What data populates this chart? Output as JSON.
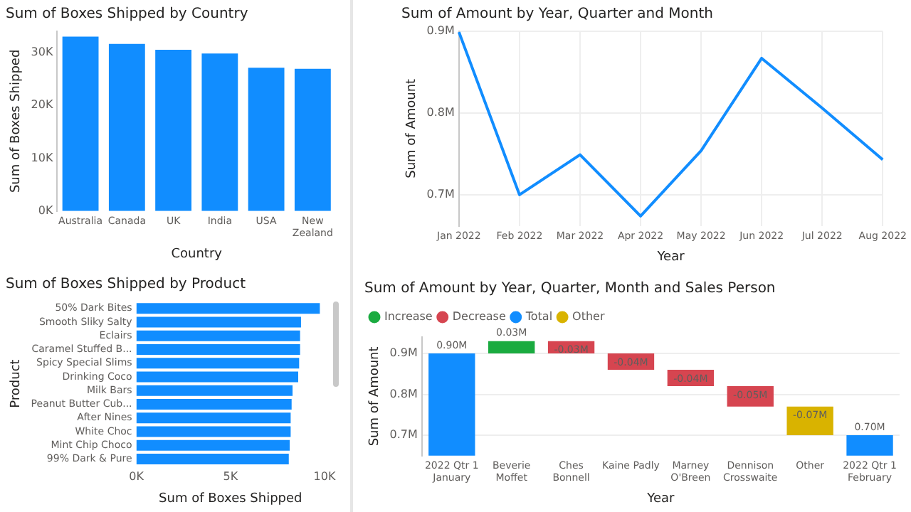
{
  "chart_data": [
    {
      "type": "bar",
      "title": "Sum of Boxes Shipped by Country",
      "xlabel": "Country",
      "ylabel": "Sum of Boxes Shipped",
      "categories": [
        "Australia",
        "Canada",
        "UK",
        "India",
        "USA",
        "New Zealand"
      ],
      "values": [
        33000,
        31600,
        30500,
        29800,
        27100,
        26900
      ],
      "color": "#118dff",
      "ylim": [
        0,
        34000
      ],
      "yticks": [
        {
          "value": 0,
          "label": "0K"
        },
        {
          "value": 10000,
          "label": "10K"
        },
        {
          "value": 20000,
          "label": "20K"
        },
        {
          "value": 30000,
          "label": "30K"
        }
      ]
    },
    {
      "type": "line",
      "title": "Sum of Amount by Year, Quarter and Month",
      "xlabel": "Year",
      "ylabel": "Sum of Amount",
      "categories": [
        "Jan 2022",
        "Feb 2022",
        "Mar 2022",
        "Apr 2022",
        "May 2022",
        "Jun 2022",
        "Jul 2022",
        "Aug 2022"
      ],
      "values": [
        899000,
        700000,
        749000,
        674000,
        754000,
        867000,
        806000,
        743000
      ],
      "color": "#118dff",
      "ylim": [
        662000,
        900000
      ],
      "yticks": [
        {
          "value": 700000,
          "label": "0.7M"
        },
        {
          "value": 800000,
          "label": "0.8M"
        },
        {
          "value": 900000,
          "label": "0.9M"
        }
      ],
      "grid": true
    },
    {
      "type": "bar",
      "orientation": "horizontal",
      "title": "Sum of Boxes Shipped by Product",
      "xlabel": "Sum of Boxes Shipped",
      "ylabel": "Product",
      "categories": [
        "50% Dark Bites",
        "Smooth Sliky Salty",
        "Eclairs",
        "Caramel Stuffed B...",
        "Spicy Special Slims",
        "Drinking Coco",
        "Milk Bars",
        "Peanut Butter Cub...",
        "After Nines",
        "White Choc",
        "Mint Chip Choco",
        "99% Dark & Pure"
      ],
      "values": [
        9750,
        8750,
        8700,
        8700,
        8650,
        8600,
        8300,
        8250,
        8200,
        8200,
        8150,
        8100
      ],
      "color": "#118dff",
      "xlim": [
        0,
        10000
      ],
      "xticks": [
        {
          "value": 0,
          "label": "0K"
        },
        {
          "value": 5000,
          "label": "5K"
        },
        {
          "value": 10000,
          "label": "10K"
        }
      ]
    },
    {
      "type": "bar",
      "title": "Sum of Amount by Year, Quarter, Month and Sales Person",
      "xlabel": "Year",
      "ylabel": "Sum of Amount",
      "categories": [
        "2022 Qtr 1 January",
        "Beverie Moffet",
        "Ches Bonnell",
        "Kaine Padly",
        "Marney O'Breen",
        "Dennison Crosswaite",
        "Other",
        "2022 Qtr 1 February"
      ],
      "series": [
        {
          "name": "Increase",
          "color": "#1aab40",
          "base": [
            null,
            900000,
            null,
            null,
            null,
            null,
            null,
            null
          ],
          "values": [
            null,
            30000,
            null,
            null,
            null,
            null,
            null,
            null
          ],
          "value_labels": [
            null,
            "0.03M",
            null,
            null,
            null,
            null,
            null,
            null
          ]
        },
        {
          "name": "Decrease",
          "color": "#d64550",
          "base": [
            null,
            null,
            930000,
            900000,
            860000,
            820000,
            null,
            null
          ],
          "values": [
            null,
            null,
            -30000,
            -40000,
            -40000,
            -50000,
            null,
            null
          ],
          "value_labels": [
            null,
            null,
            "-0.03M",
            "-0.04M",
            "-0.04M",
            "-0.05M",
            null,
            null
          ]
        },
        {
          "name": "Total",
          "color": "#118dff",
          "base": [
            0,
            null,
            null,
            null,
            null,
            null,
            null,
            0
          ],
          "values": [
            900000,
            null,
            null,
            null,
            null,
            null,
            null,
            700000
          ],
          "value_labels": [
            "0.90M",
            null,
            null,
            null,
            null,
            null,
            null,
            "0.70M"
          ]
        },
        {
          "name": "Other",
          "color": "#d9b300",
          "base": [
            null,
            null,
            null,
            null,
            null,
            null,
            770000,
            null
          ],
          "values": [
            null,
            null,
            null,
            null,
            null,
            null,
            -70000,
            null
          ],
          "value_labels": [
            null,
            null,
            null,
            null,
            null,
            null,
            "-0.07M",
            null
          ]
        }
      ],
      "ylim": [
        650000,
        940000
      ],
      "yticks": [
        {
          "value": 700000,
          "label": "0.7M"
        },
        {
          "value": 800000,
          "label": "0.8M"
        },
        {
          "value": 900000,
          "label": "0.9M"
        }
      ],
      "grid": "y",
      "legend": "top left"
    }
  ]
}
